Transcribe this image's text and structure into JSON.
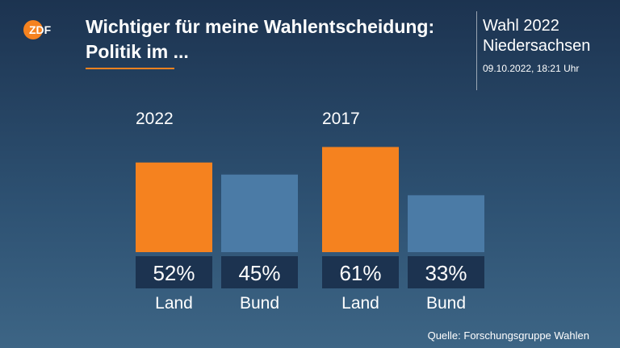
{
  "header": {
    "logo_text": "ZDF",
    "title_line1": "Wichtiger für meine Wahlentscheidung:",
    "title_line2": "Politik im ...",
    "election_line1": "Wahl 2022",
    "election_line2": "Niedersachsen",
    "timestamp": "09.10.2022, 18:21 Uhr"
  },
  "source": "Quelle: Forschungsgruppe Wahlen",
  "colors": {
    "land": "#f5821f",
    "bund": "#4b7ba6",
    "label_box": "#1c3350",
    "accent": "#f5821f"
  },
  "chart_data": {
    "type": "bar",
    "ylim": [
      0,
      100
    ],
    "groups": [
      {
        "year": "2022",
        "bars": [
          {
            "category": "Land",
            "value": 52,
            "label": "52%"
          },
          {
            "category": "Bund",
            "value": 45,
            "label": "45%"
          }
        ]
      },
      {
        "year": "2017",
        "bars": [
          {
            "category": "Land",
            "value": 61,
            "label": "61%"
          },
          {
            "category": "Bund",
            "value": 33,
            "label": "33%"
          }
        ]
      }
    ]
  }
}
